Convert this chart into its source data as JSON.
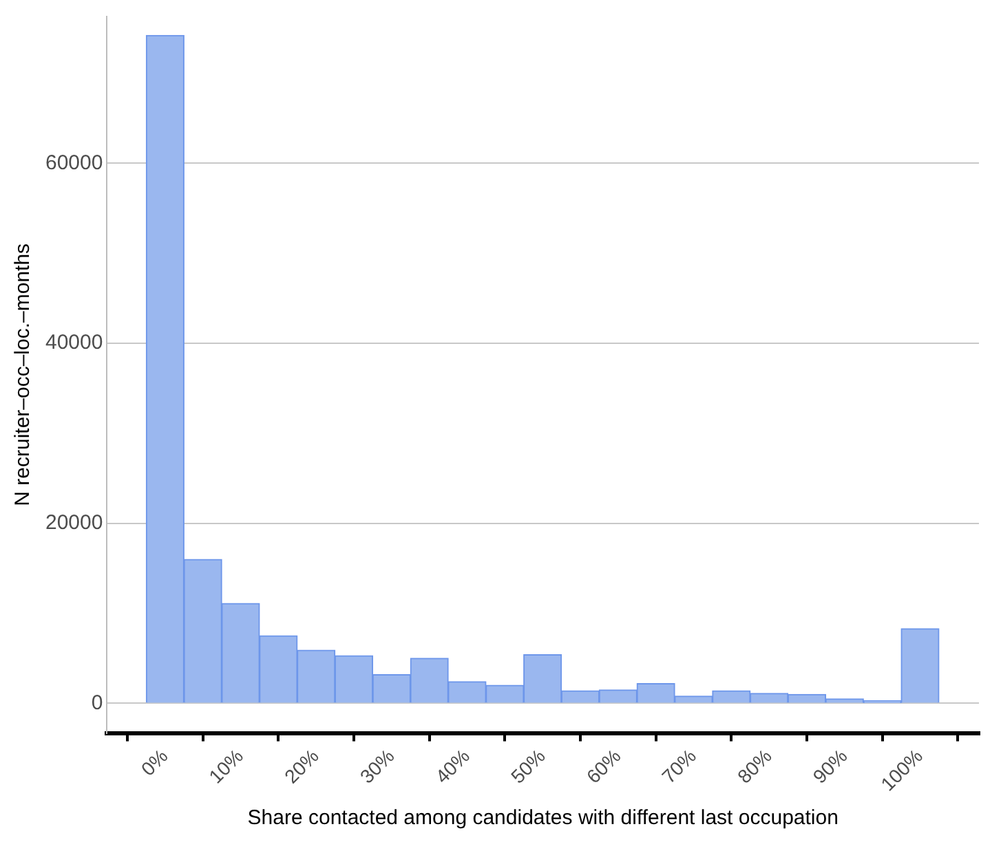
{
  "chart_data": {
    "type": "histogram",
    "xlabel": "Share contacted among candidates with different last occupation",
    "ylabel": "N recruiter–occ–loc.–months",
    "bins": [
      -2.5,
      2.5,
      7.5,
      12.5,
      17.5,
      22.5,
      27.5,
      32.5,
      37.5,
      42.5,
      47.5,
      52.5,
      57.5,
      62.5,
      67.5,
      72.5,
      77.5,
      82.5,
      87.5,
      92.5,
      97.5,
      102.5
    ],
    "values": [
      74200,
      16000,
      11100,
      7500,
      5900,
      5300,
      3200,
      5000,
      2400,
      2000,
      5400,
      1400,
      1500,
      2200,
      800,
      1400,
      1100,
      1000,
      500,
      300,
      8300
    ],
    "color": "#9ab7ef",
    "xlim": [
      -7.7,
      107.8
    ],
    "xticks": [
      {
        "value": 0,
        "label": "0%"
      },
      {
        "value": 10,
        "label": "10%"
      },
      {
        "value": 20,
        "label": "20%"
      },
      {
        "value": 30,
        "label": "30%"
      },
      {
        "value": 40,
        "label": "40%"
      },
      {
        "value": 50,
        "label": "50%"
      },
      {
        "value": 60,
        "label": "60%"
      },
      {
        "value": 70,
        "label": "70%"
      },
      {
        "value": 80,
        "label": "80%"
      },
      {
        "value": 90,
        "label": "90%"
      },
      {
        "value": 100,
        "label": "100%"
      }
    ],
    "ylim": [
      -3300,
      76300
    ],
    "yticks": [
      0,
      20000,
      40000,
      60000
    ],
    "grid": "y",
    "legend": false
  }
}
